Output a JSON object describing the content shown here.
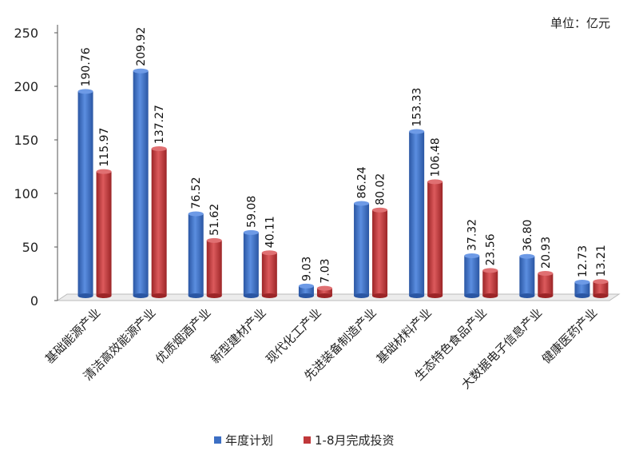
{
  "unit_label": "单位：亿元",
  "colors": {
    "plan": "#3c6fc4",
    "done": "#c0383a",
    "axis": "#555555"
  },
  "chart_data": {
    "type": "bar",
    "title": "",
    "xlabel": "",
    "ylabel": "",
    "ylim": [
      0,
      250
    ],
    "yticks": [
      0,
      50,
      100,
      150,
      200,
      250
    ],
    "grid": false,
    "legend_position": "bottom",
    "categories": [
      "基础能源产业",
      "清洁高效能源产业",
      "优质烟酒产业",
      "新型建材产业",
      "现代化工产业",
      "先进装备制造产业",
      "基础材料产业",
      "生态特色食品产业",
      "大数据电子信息产业",
      "健康医药产业"
    ],
    "series": [
      {
        "name": "年度计划",
        "values": [
          190.76,
          209.92,
          76.52,
          59.08,
          9.03,
          86.24,
          153.33,
          37.32,
          36.8,
          12.73
        ],
        "labels": [
          "190.76",
          "209.92",
          "76.52",
          "59.08",
          "9.03",
          "86.24",
          "153.33",
          "37.32",
          "36.80",
          "12.73"
        ]
      },
      {
        "name": "1-8月完成投资",
        "values": [
          115.97,
          137.27,
          51.62,
          40.11,
          7.03,
          80.02,
          106.48,
          23.56,
          20.93,
          13.21
        ],
        "labels": [
          "115.97",
          "137.27",
          "51.62",
          "40.11",
          "7.03",
          "80.02",
          "106.48",
          "23.56",
          "20.93",
          "13.21"
        ]
      }
    ]
  }
}
